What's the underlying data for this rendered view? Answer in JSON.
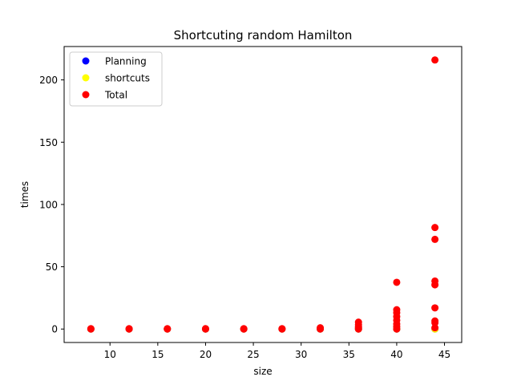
{
  "chart_data": {
    "type": "scatter",
    "title": "Shortcuting random Hamilton",
    "xlabel": "size",
    "ylabel": "times",
    "xlim": [
      5.2,
      46.8
    ],
    "ylim": [
      -10.8,
      226.8
    ],
    "xticks": [
      10,
      15,
      20,
      25,
      30,
      35,
      40,
      45
    ],
    "yticks": [
      0,
      50,
      100,
      150,
      200
    ],
    "grid": false,
    "legend_position": "top-left",
    "series": [
      {
        "name": "Planning",
        "color": "#0000ff",
        "points": [
          [
            8,
            0
          ],
          [
            12,
            0
          ],
          [
            16,
            0
          ],
          [
            20,
            0
          ],
          [
            24,
            0
          ],
          [
            28,
            0
          ],
          [
            32,
            0
          ],
          [
            36,
            0
          ],
          [
            40,
            0
          ],
          [
            44,
            0
          ]
        ]
      },
      {
        "name": "shortcuts",
        "color": "#ffff00",
        "points": [
          [
            8,
            0
          ],
          [
            12,
            0
          ],
          [
            16,
            0
          ],
          [
            20,
            0
          ],
          [
            24,
            0
          ],
          [
            28,
            0
          ],
          [
            32,
            0
          ],
          [
            36,
            0
          ],
          [
            40,
            0
          ],
          [
            44,
            0
          ]
        ]
      },
      {
        "name": "Total",
        "color": "#ff0000",
        "points": [
          [
            8,
            0
          ],
          [
            8,
            0.3
          ],
          [
            12,
            0
          ],
          [
            12,
            0.3
          ],
          [
            16,
            0
          ],
          [
            16,
            0.3
          ],
          [
            20,
            0
          ],
          [
            20,
            0.3
          ],
          [
            24,
            0
          ],
          [
            24,
            0.3
          ],
          [
            28,
            0
          ],
          [
            28,
            0.3
          ],
          [
            32,
            0
          ],
          [
            32,
            0.5
          ],
          [
            32,
            1
          ],
          [
            36,
            0
          ],
          [
            36,
            1
          ],
          [
            36,
            2
          ],
          [
            36,
            3.5
          ],
          [
            36,
            5.5
          ],
          [
            40,
            0
          ],
          [
            40,
            2
          ],
          [
            40,
            4
          ],
          [
            40,
            7
          ],
          [
            40,
            10
          ],
          [
            40,
            13
          ],
          [
            40,
            15.5
          ],
          [
            40,
            37.5
          ],
          [
            44,
            1
          ],
          [
            44,
            5
          ],
          [
            44,
            6.5
          ],
          [
            44,
            17
          ],
          [
            44,
            35.5
          ],
          [
            44,
            38.5
          ],
          [
            44,
            72
          ],
          [
            44,
            81.5
          ],
          [
            44,
            216
          ]
        ]
      }
    ]
  }
}
